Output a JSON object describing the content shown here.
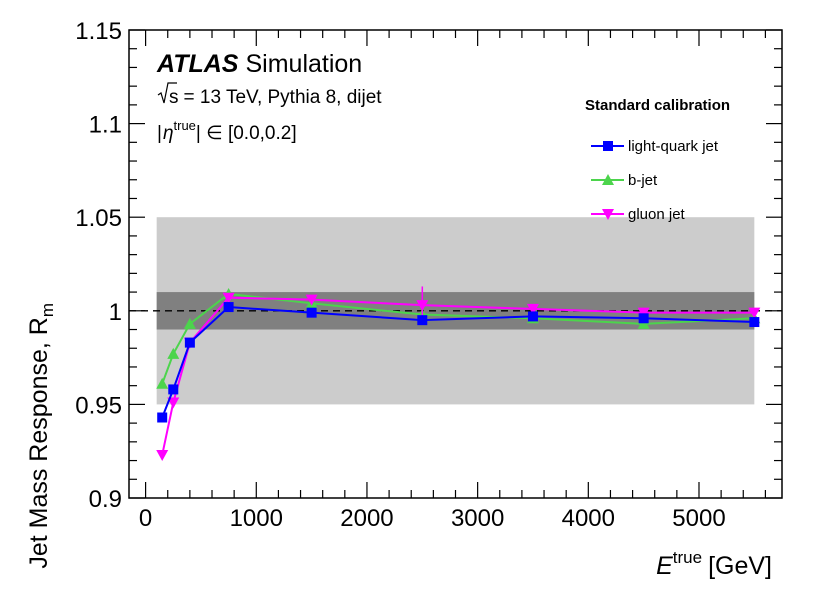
{
  "chart_data": {
    "type": "line",
    "experiment": "ATLAS",
    "experiment_suffix": "Simulation",
    "condition_sqrt": "s",
    "condition_rest": "= 13 TeV, Pythia 8, dijet",
    "eta_prefix": "|",
    "eta_symbol": "η",
    "eta_sup": "true",
    "eta_range": "| ∈ [0.0,0.2]",
    "xlabel_symbol": "E",
    "xlabel_sup": "true",
    "xlabel_unit": "[GeV]",
    "ylabel_main": "Jet Mass Response, R",
    "ylabel_sub": "m",
    "xlim": [
      -150,
      5750
    ],
    "ylim": [
      0.9,
      1.15
    ],
    "x_ticks": [
      0,
      1000,
      2000,
      3000,
      4000,
      5000
    ],
    "x_tick_labels": [
      "0",
      "1000",
      "2000",
      "3000",
      "4000",
      "5000"
    ],
    "y_ticks": [
      0.9,
      0.95,
      1.0,
      1.05,
      1.1,
      1.15
    ],
    "y_tick_labels": [
      "0.9",
      "0.95",
      "1",
      "1.05",
      "1.1",
      "1.15"
    ],
    "reference_line": 1.0,
    "bands": [
      {
        "name": "outer band",
        "x_range": [
          100,
          5500
        ],
        "y_range": [
          0.95,
          1.05
        ],
        "color": "#cccccc"
      },
      {
        "name": "inner band",
        "x_range": [
          100,
          5500
        ],
        "y_range": [
          0.99,
          1.01
        ],
        "color": "#808080"
      }
    ],
    "legend_title": "Standard calibration",
    "legend_position": "top-right",
    "series": [
      {
        "name": "light-quark jet",
        "color": "#0000ff",
        "marker": "square",
        "x": [
          150,
          250,
          400,
          750,
          1500,
          2500,
          3500,
          4500,
          5500
        ],
        "y": [
          0.943,
          0.958,
          0.983,
          1.002,
          0.999,
          0.995,
          0.997,
          0.996,
          0.994
        ],
        "yerr": [
          0.001,
          0.001,
          0.001,
          0.001,
          0.001,
          0.002,
          0.002,
          0.002,
          0.002
        ]
      },
      {
        "name": "b-jet",
        "color": "#4cd44c",
        "marker": "triangle-up",
        "x": [
          150,
          250,
          400,
          750,
          1500,
          2500,
          3500,
          4500,
          5500
        ],
        "y": [
          0.961,
          0.977,
          0.993,
          1.009,
          1.004,
          0.998,
          0.996,
          0.993,
          0.996
        ],
        "yerr": [
          0.001,
          0.001,
          0.001,
          0.001,
          0.001,
          0.002,
          0.002,
          0.002,
          0.002
        ]
      },
      {
        "name": "gluon jet",
        "color": "#ff00ff",
        "marker": "triangle-down",
        "x": [
          150,
          250,
          400,
          750,
          1500,
          2500,
          3500,
          4500,
          5500
        ],
        "y": [
          0.923,
          0.951,
          0.983,
          1.007,
          1.006,
          1.003,
          1.001,
          0.999,
          0.999
        ],
        "yerr": [
          0.001,
          0.001,
          0.001,
          0.001,
          0.001,
          0.01,
          0.002,
          0.002,
          0.002
        ]
      }
    ]
  }
}
